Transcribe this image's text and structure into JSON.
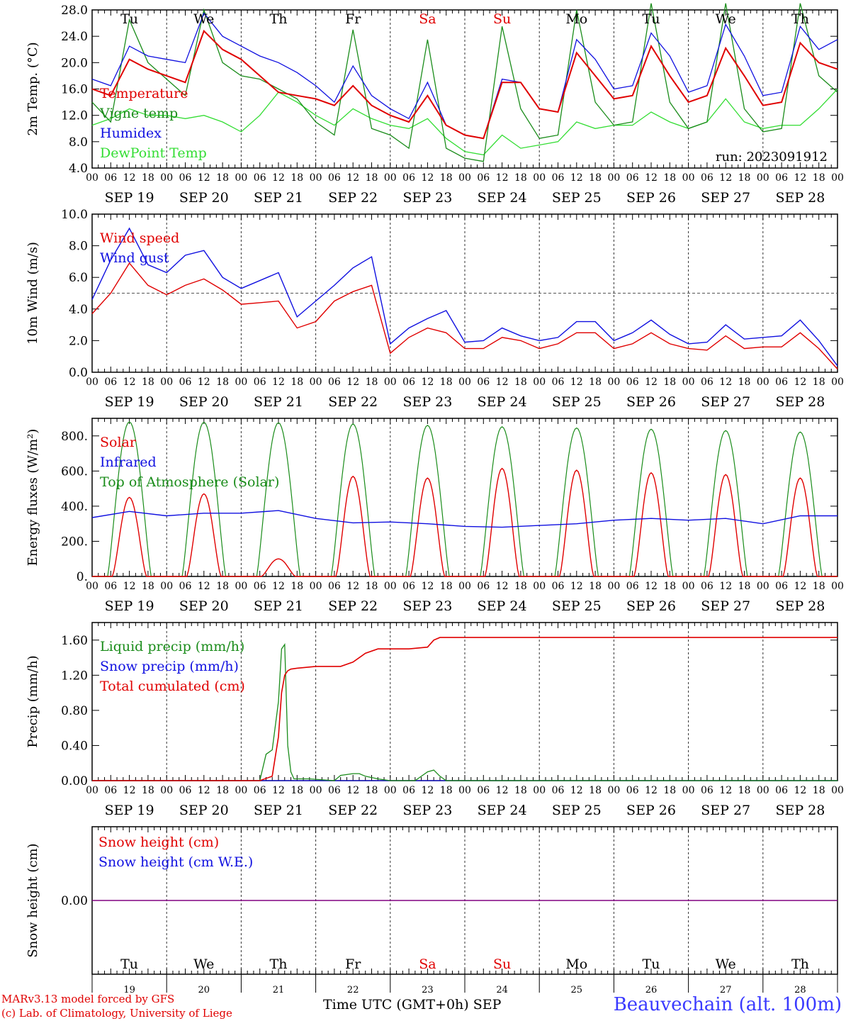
{
  "days": [
    "19",
    "20",
    "21",
    "22",
    "23",
    "24",
    "25",
    "26",
    "27",
    "28"
  ],
  "month": "SEP",
  "weekdays": [
    {
      "label": "Tu",
      "color": "#000000"
    },
    {
      "label": "We",
      "color": "#000000"
    },
    {
      "label": "Th",
      "color": "#000000"
    },
    {
      "label": "Fr",
      "color": "#000000"
    },
    {
      "label": "Sa",
      "color": "#e00000"
    },
    {
      "label": "Su",
      "color": "#e00000"
    },
    {
      "label": "Mo",
      "color": "#000000"
    },
    {
      "label": "Tu",
      "color": "#000000"
    },
    {
      "label": "We",
      "color": "#000000"
    },
    {
      "label": "Th",
      "color": "#000000"
    }
  ],
  "hour_ticks": [
    "00",
    "06",
    "12",
    "18"
  ],
  "colors": {
    "red": "#e00000",
    "green": "#1a8c1a",
    "blue": "#1010e0",
    "lightgreen": "#33dd33",
    "purple": "#800080"
  },
  "chart_data": [
    {
      "type": "line",
      "ylabel": "2m Temp. (°C)",
      "ylim": [
        4.0,
        28.0
      ],
      "yticks": [
        "4.0",
        "8.0",
        "12.0",
        "16.0",
        "20.0",
        "24.0",
        "28.0"
      ],
      "run_label": "run: 2023091912",
      "x_unit": "hours since SEP 19 00 UTC",
      "series": [
        {
          "name": "Temperature",
          "color": "#e00000",
          "x": [
            0,
            6,
            12,
            18,
            24,
            30,
            36,
            42,
            48,
            54,
            60,
            66,
            72,
            78,
            84,
            90,
            96,
            102,
            108,
            114,
            120,
            126,
            132,
            138,
            144,
            150,
            156,
            162,
            168,
            174,
            180,
            186,
            192,
            198,
            204,
            210,
            216,
            222,
            228,
            234,
            240
          ],
          "values": [
            16,
            15,
            20.5,
            19,
            18,
            17,
            24.8,
            22,
            20.5,
            18,
            15.5,
            15,
            14.5,
            13.5,
            16.5,
            13.5,
            12,
            11,
            15,
            10.5,
            9,
            8.5,
            17,
            17,
            13,
            12.5,
            21.5,
            18,
            14.5,
            15,
            22.5,
            18,
            14,
            15,
            22.2,
            18,
            13.5,
            14,
            23,
            20,
            19
          ]
        },
        {
          "name": "Vigne temp",
          "color": "#1a8c1a",
          "x": [
            0,
            6,
            12,
            18,
            24,
            30,
            36,
            42,
            48,
            54,
            60,
            66,
            72,
            78,
            84,
            90,
            96,
            102,
            108,
            114,
            120,
            126,
            132,
            138,
            144,
            150,
            156,
            162,
            168,
            174,
            180,
            186,
            192,
            198,
            204,
            210,
            216,
            222,
            228,
            234,
            240
          ],
          "values": [
            14,
            11,
            26.5,
            20,
            17.5,
            15,
            28,
            20,
            18,
            17.5,
            16,
            14.5,
            11,
            9,
            25,
            10,
            9,
            7,
            23.5,
            7,
            5.5,
            5,
            25.5,
            13,
            8.5,
            9,
            28,
            14,
            10.5,
            11,
            29,
            14,
            10,
            11,
            29,
            13,
            9.5,
            10,
            29,
            18,
            15.5
          ]
        },
        {
          "name": "Humidex",
          "color": "#1010e0",
          "x": [
            0,
            6,
            12,
            18,
            24,
            30,
            36,
            42,
            48,
            54,
            60,
            66,
            72,
            78,
            84,
            90,
            96,
            102,
            108,
            114,
            120,
            126,
            132,
            138,
            144,
            150,
            156,
            162,
            168,
            174,
            180,
            186,
            192,
            198,
            204,
            210,
            216,
            222,
            228,
            234,
            240
          ],
          "values": [
            17.5,
            16.5,
            22.5,
            21,
            20.5,
            20,
            27.5,
            24,
            22.5,
            21,
            20,
            18.5,
            16.5,
            14,
            19.5,
            15,
            13,
            11.5,
            17,
            10.5,
            9,
            8.5,
            17.5,
            17,
            13,
            12.5,
            23.5,
            20.5,
            16,
            16.5,
            24.5,
            21,
            15.5,
            16.5,
            25.8,
            21,
            15,
            15.5,
            25.5,
            22,
            23.5
          ]
        },
        {
          "name": "DewPoint Temp",
          "color": "#33dd33",
          "x": [
            0,
            6,
            12,
            18,
            24,
            30,
            36,
            42,
            48,
            54,
            60,
            66,
            72,
            78,
            84,
            90,
            96,
            102,
            108,
            114,
            120,
            126,
            132,
            138,
            144,
            150,
            156,
            162,
            168,
            174,
            180,
            186,
            192,
            198,
            204,
            210,
            216,
            222,
            228,
            234,
            240
          ],
          "values": [
            10.5,
            11.5,
            13,
            12,
            12,
            11.5,
            12,
            11,
            9.5,
            12,
            15.5,
            14,
            12,
            10.5,
            13,
            11.5,
            10.5,
            10,
            11.5,
            8.5,
            6.5,
            6,
            9,
            7,
            7.5,
            8,
            11,
            10,
            10.5,
            10.5,
            12.5,
            11,
            10,
            11,
            14.5,
            11,
            10,
            10.5,
            10.5,
            13,
            16
          ]
        }
      ]
    },
    {
      "type": "line",
      "ylabel": "10m Wind (m/s)",
      "ylim": [
        0.0,
        10.0
      ],
      "yticks": [
        "0.0",
        "2.0",
        "4.0",
        "6.0",
        "8.0",
        "10.0"
      ],
      "ref_line": 5.0,
      "series": [
        {
          "name": "Wind speed",
          "color": "#e00000",
          "x": [
            0,
            6,
            12,
            18,
            24,
            30,
            36,
            42,
            48,
            54,
            60,
            66,
            72,
            78,
            84,
            90,
            96,
            102,
            108,
            114,
            120,
            126,
            132,
            138,
            144,
            150,
            156,
            162,
            168,
            174,
            180,
            186,
            192,
            198,
            204,
            210,
            216,
            222,
            228,
            234,
            240
          ],
          "values": [
            3.7,
            5,
            6.9,
            5.5,
            4.9,
            5.5,
            5.9,
            5.2,
            4.3,
            4.4,
            4.5,
            2.8,
            3.2,
            4.5,
            5.1,
            5.5,
            1.2,
            2.2,
            2.8,
            2.5,
            1.5,
            1.5,
            2.2,
            2,
            1.5,
            1.8,
            2.5,
            2.5,
            1.5,
            1.8,
            2.5,
            1.8,
            1.5,
            1.4,
            2.3,
            1.5,
            1.6,
            1.6,
            2.5,
            1.5,
            0.2
          ]
        },
        {
          "name": "Wind gust",
          "color": "#1010e0",
          "x": [
            0,
            6,
            12,
            18,
            24,
            30,
            36,
            42,
            48,
            54,
            60,
            66,
            72,
            78,
            84,
            90,
            96,
            102,
            108,
            114,
            120,
            126,
            132,
            138,
            144,
            150,
            156,
            162,
            168,
            174,
            180,
            186,
            192,
            198,
            204,
            210,
            216,
            222,
            228,
            234,
            240
          ],
          "values": [
            4.6,
            7.1,
            9.1,
            6.8,
            6.3,
            7.4,
            7.7,
            6,
            5.3,
            5.8,
            6.3,
            3.5,
            4.5,
            5.5,
            6.6,
            7.3,
            1.8,
            2.8,
            3.4,
            3.9,
            1.9,
            2,
            2.8,
            2.3,
            2,
            2.2,
            3.2,
            3.2,
            2,
            2.5,
            3.3,
            2.4,
            1.8,
            1.9,
            3,
            2.1,
            2.2,
            2.3,
            3.3,
            2,
            0.4
          ]
        }
      ]
    },
    {
      "type": "line",
      "ylabel": "Energy fluxes (W/m²)",
      "ylim": [
        0,
        900
      ],
      "yticks": [
        "0.",
        "200.",
        "400.",
        "600.",
        "800."
      ],
      "series": [
        {
          "name": "Solar",
          "color": "#e00000",
          "peaks": [
            450,
            470,
            100,
            570,
            560,
            615,
            605,
            590,
            580,
            560
          ]
        },
        {
          "name": "Infrared",
          "color": "#1010e0",
          "x": [
            0,
            12,
            24,
            36,
            48,
            60,
            72,
            84,
            96,
            108,
            120,
            132,
            144,
            156,
            168,
            180,
            192,
            204,
            216,
            228,
            240
          ],
          "values": [
            335,
            370,
            345,
            360,
            360,
            375,
            330,
            305,
            310,
            300,
            285,
            280,
            290,
            300,
            320,
            330,
            320,
            330,
            300,
            345,
            345
          ]
        },
        {
          "name": "Top of Atmosphere (Solar)",
          "color": "#1a8c1a",
          "peaks": [
            880,
            878,
            875,
            868,
            860,
            852,
            845,
            838,
            830,
            822
          ]
        }
      ]
    },
    {
      "type": "line",
      "ylabel": "Precip (mm/h)",
      "ylim": [
        0.0,
        1.8
      ],
      "yticks": [
        "0.00",
        "0.40",
        "0.80",
        "1.20",
        "1.60"
      ],
      "series": [
        {
          "name": "Liquid precip (mm/h)",
          "color": "#1a8c1a",
          "x": [
            0,
            54,
            56,
            58,
            60,
            61,
            62,
            63,
            64,
            65,
            66,
            70,
            78,
            80,
            84,
            86,
            88,
            92,
            96,
            104,
            108,
            110,
            112,
            114,
            240
          ],
          "values": [
            0,
            0,
            0.3,
            0.35,
            0.9,
            1.5,
            1.55,
            0.4,
            0.1,
            0.02,
            0.02,
            0.02,
            0,
            0.06,
            0.08,
            0.08,
            0.05,
            0.02,
            0,
            0,
            0.1,
            0.12,
            0.05,
            0,
            0
          ]
        },
        {
          "name": "Snow precip (mm/h)",
          "color": "#1010e0",
          "x": [
            0,
            240
          ],
          "values": [
            0,
            0
          ]
        },
        {
          "name": "Total cumulated (cm)",
          "color": "#e00000",
          "x": [
            0,
            54,
            58,
            60,
            61,
            62,
            63,
            64,
            66,
            72,
            80,
            84,
            88,
            92,
            102,
            108,
            110,
            112,
            240
          ],
          "values": [
            0,
            0,
            0.05,
            0.5,
            1.0,
            1.2,
            1.25,
            1.27,
            1.28,
            1.3,
            1.3,
            1.35,
            1.45,
            1.5,
            1.5,
            1.52,
            1.6,
            1.63,
            1.63
          ]
        }
      ]
    },
    {
      "type": "line",
      "ylabel": "Snow height (cm)",
      "yticks": [
        "0.00"
      ],
      "series": [
        {
          "name": "Snow height (cm)",
          "color": "#e00000",
          "x": [
            0,
            240
          ],
          "values": [
            0,
            0
          ]
        },
        {
          "name": "Snow height (cm W.E.)",
          "color": "#1010e0",
          "x": [
            0,
            240
          ],
          "values": [
            0,
            0
          ]
        }
      ]
    }
  ],
  "footer": {
    "credit1": "MARv3.13 model forced by GFS",
    "credit2": "(c) Lab. of Climatology, University of Liege",
    "axis_title": "Time UTC (GMT+0h)",
    "month": "SEP",
    "station": "Beauvechain (alt. 100m)"
  }
}
